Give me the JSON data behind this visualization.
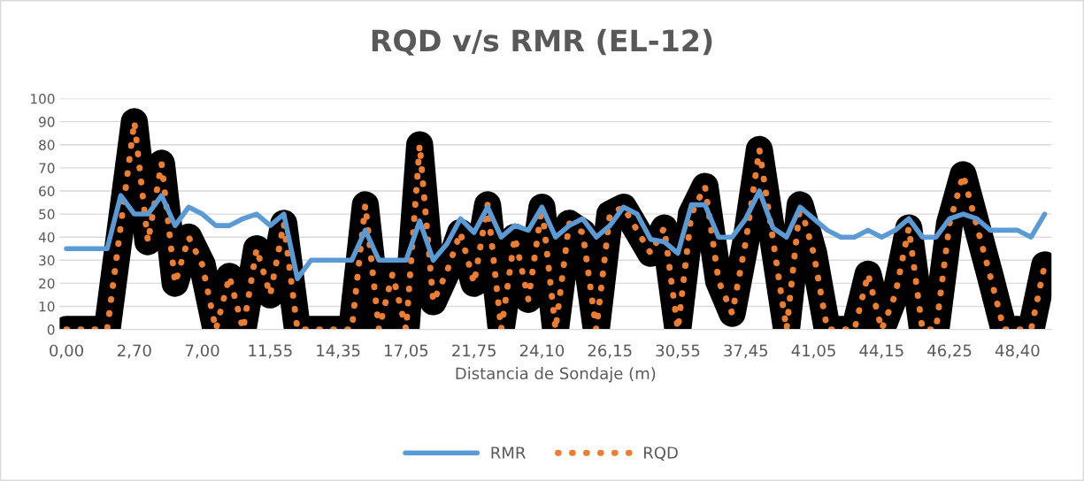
{
  "chart_data": {
    "type": "line",
    "title": "RQD v/s RMR (EL-12)",
    "xlabel": "Distancia de Sondaje (m)",
    "categories": [
      "0,00",
      null,
      null,
      null,
      null,
      "2,70",
      null,
      null,
      null,
      null,
      "7,00",
      null,
      null,
      null,
      null,
      "11,55",
      null,
      null,
      null,
      null,
      "14,35",
      null,
      null,
      null,
      null,
      "17,05",
      null,
      null,
      null,
      null,
      "21,75",
      null,
      null,
      null,
      null,
      "24,10",
      null,
      null,
      null,
      null,
      "26,15",
      null,
      null,
      null,
      null,
      "30,55",
      null,
      null,
      null,
      null,
      "37,45",
      null,
      null,
      null,
      null,
      "41,05",
      null,
      null,
      null,
      null,
      "44,15",
      null,
      null,
      null,
      null,
      "46,25",
      null,
      null,
      null,
      null,
      "48,40",
      null,
      null
    ],
    "series": [
      {
        "name": "RMR",
        "color": "#5b9bd5",
        "line_style": "solid",
        "values": [
          35,
          35,
          35,
          35,
          58,
          50,
          50,
          58,
          45,
          53,
          50,
          45,
          45,
          48,
          50,
          45,
          50,
          22,
          30,
          30,
          30,
          30,
          43,
          30,
          30,
          30,
          47,
          30,
          37,
          48,
          42,
          53,
          40,
          45,
          43,
          53,
          40,
          45,
          48,
          40,
          45,
          53,
          50,
          39,
          38,
          33,
          54,
          54,
          40,
          40,
          48,
          60,
          44,
          40,
          53,
          48,
          43,
          40,
          40,
          43,
          40,
          43,
          48,
          40,
          40,
          48,
          50,
          48,
          43,
          43,
          43,
          40,
          50
        ]
      },
      {
        "name": "RQD",
        "color": "#ed7d31",
        "line_style": "dotted",
        "values": [
          0,
          0,
          0,
          0,
          45,
          90,
          38,
          72,
          20,
          40,
          28,
          0,
          23,
          0,
          35,
          15,
          46,
          0,
          0,
          0,
          0,
          0,
          54,
          0,
          24,
          0,
          80,
          12,
          25,
          42,
          20,
          54,
          0,
          40,
          13,
          53,
          0,
          46,
          42,
          0,
          50,
          53,
          43,
          33,
          44,
          0,
          50,
          62,
          21,
          7,
          38,
          78,
          39,
          0,
          54,
          33,
          0,
          0,
          0,
          24,
          0,
          15,
          44,
          0,
          0,
          46,
          67,
          45,
          23,
          0,
          0,
          0,
          28
        ]
      }
    ],
    "ylim": [
      0,
      100
    ],
    "yticks": [
      0,
      10,
      20,
      30,
      40,
      50,
      60,
      70,
      80,
      90,
      100
    ],
    "grid": "y",
    "legend": "bottom",
    "marker": "none"
  }
}
